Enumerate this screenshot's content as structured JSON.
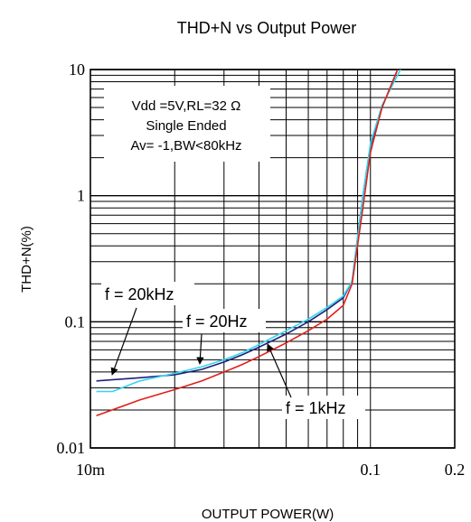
{
  "chart_data": {
    "type": "line",
    "title": "THD+N vs Output Power",
    "xlabel": "OUTPUT POWER(W)",
    "ylabel": "THD+N(%)",
    "xscale": "log",
    "yscale": "log",
    "xlim": [
      0.01,
      0.2
    ],
    "ylim": [
      0.01,
      10
    ],
    "grid": true,
    "x_tick_labels": [
      "10m",
      "0.1",
      "0.2"
    ],
    "y_tick_labels": [
      "10",
      "1",
      "0.1",
      "0.01"
    ],
    "conditions": [
      "Vdd =5V,RL=32 Ω",
      "Single Ended",
      "Av= -1,BW<80kHz"
    ],
    "annotations": [
      "f = 20kHz",
      "f = 20Hz",
      "f = 1kHz"
    ],
    "series": [
      {
        "name": "f = 20kHz",
        "color": "#1f1f7a",
        "x": [
          0.0105,
          0.015,
          0.02,
          0.025,
          0.03,
          0.035,
          0.04,
          0.05,
          0.06,
          0.07,
          0.08,
          0.086,
          0.094,
          0.1,
          0.11,
          0.125
        ],
        "y": [
          0.034,
          0.036,
          0.038,
          0.042,
          0.048,
          0.055,
          0.063,
          0.08,
          0.1,
          0.125,
          0.155,
          0.21,
          1.0,
          2.5,
          5.0,
          10
        ]
      },
      {
        "name": "f = 20Hz",
        "color": "#33d6f0",
        "x": [
          0.0105,
          0.012,
          0.015,
          0.02,
          0.025,
          0.03,
          0.035,
          0.04,
          0.05,
          0.06,
          0.07,
          0.08,
          0.086,
          0.094,
          0.1,
          0.11,
          0.128
        ],
        "y": [
          0.028,
          0.028,
          0.034,
          0.039,
          0.044,
          0.05,
          0.057,
          0.066,
          0.085,
          0.105,
          0.13,
          0.16,
          0.21,
          1.0,
          2.6,
          5.2,
          10
        ]
      },
      {
        "name": "f = 1kHz",
        "color": "#e0201a",
        "x": [
          0.0105,
          0.015,
          0.02,
          0.025,
          0.03,
          0.035,
          0.04,
          0.05,
          0.06,
          0.07,
          0.08,
          0.086,
          0.094,
          0.1,
          0.11,
          0.125
        ],
        "y": [
          0.018,
          0.024,
          0.029,
          0.034,
          0.04,
          0.046,
          0.053,
          0.068,
          0.085,
          0.105,
          0.135,
          0.2,
          0.8,
          2.2,
          5.0,
          10
        ]
      }
    ]
  }
}
